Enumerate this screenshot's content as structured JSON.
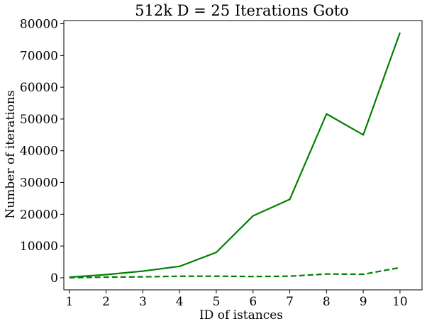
{
  "chart_data": {
    "type": "line",
    "title": "512k    D = 25    Iterations    Goto",
    "xlabel": "ID of istances",
    "ylabel": "Number of iterations",
    "x": [
      1,
      2,
      3,
      4,
      5,
      6,
      7,
      8,
      9,
      10
    ],
    "xlim": [
      0.85,
      10.6
    ],
    "ylim": [
      -3800,
      81000
    ],
    "xticks": [
      1,
      2,
      3,
      4,
      5,
      6,
      7,
      8,
      9,
      10
    ],
    "yticks": [
      0,
      10000,
      20000,
      30000,
      40000,
      50000,
      60000,
      70000,
      80000
    ],
    "grid": false,
    "series": [
      {
        "style": "solid",
        "color": "#008000",
        "values": [
          200,
          1000,
          2100,
          3600,
          8000,
          19500,
          24700,
          51600,
          45000,
          77200
        ]
      },
      {
        "style": "dashed",
        "color": "#008000",
        "values": [
          50,
          200,
          300,
          500,
          500,
          400,
          500,
          1200,
          1100,
          3200
        ]
      }
    ]
  }
}
